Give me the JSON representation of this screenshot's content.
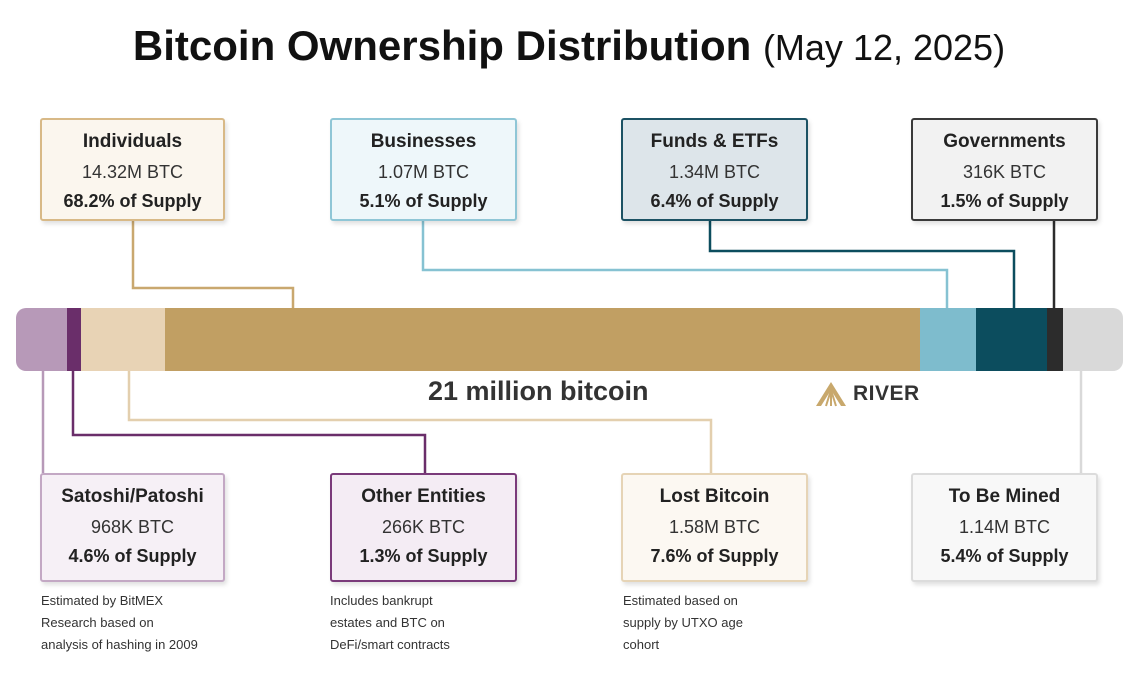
{
  "title": "Bitcoin Ownership Distribution",
  "title_date": "(May 12, 2025)",
  "chart_data": {
    "type": "bar",
    "orientation": "stacked-horizontal",
    "total_label": "21 million bitcoin",
    "unit": "% of Supply",
    "segments": [
      {
        "name": "Satoshi/Patoshi",
        "value": 4.6,
        "color": "#b799b8"
      },
      {
        "name": "Other Entities",
        "value": 1.3,
        "color": "#6a2e6a"
      },
      {
        "name": "Lost Bitcoin",
        "value": 7.6,
        "color": "#e8d3b5"
      },
      {
        "name": "Individuals",
        "value": 68.2,
        "color": "#c19f63"
      },
      {
        "name": "Businesses",
        "value": 5.1,
        "color": "#7ebccd"
      },
      {
        "name": "Funds & ETFs",
        "value": 6.4,
        "color": "#0c4d5e"
      },
      {
        "name": "Governments",
        "value": 1.5,
        "color": "#2c2c2c"
      },
      {
        "name": "To Be Mined",
        "value": 5.4,
        "color": "#d9d9d9"
      }
    ]
  },
  "cards": {
    "individuals": {
      "name": "Individuals",
      "btc": "14.32M BTC",
      "pct": "68.2% of Supply"
    },
    "businesses": {
      "name": "Businesses",
      "btc": "1.07M BTC",
      "pct": "5.1% of Supply"
    },
    "funds": {
      "name": "Funds & ETFs",
      "btc": "1.34M BTC",
      "pct": "6.4% of Supply"
    },
    "governments": {
      "name": "Governments",
      "btc": "316K BTC",
      "pct": "1.5% of Supply"
    },
    "satoshi": {
      "name": "Satoshi/Patoshi",
      "btc": "968K BTC",
      "pct": "4.6% of Supply"
    },
    "other": {
      "name": "Other Entities",
      "btc": "266K BTC",
      "pct": "1.3% of Supply"
    },
    "lost": {
      "name": "Lost Bitcoin",
      "btc": "1.58M BTC",
      "pct": "7.6% of Supply"
    },
    "mined": {
      "name": "To Be Mined",
      "btc": "1.14M BTC",
      "pct": "5.4% of Supply"
    }
  },
  "notes": {
    "satoshi": [
      "Estimated by BitMEX",
      "Research based on",
      "analysis of hashing in 2009"
    ],
    "other": [
      "Includes bankrupt",
      "estates and BTC on",
      "DeFi/smart contracts"
    ],
    "lost": [
      "Estimated based on",
      "supply by UTXO age",
      "cohort"
    ]
  },
  "logo": {
    "text": "RIVER",
    "icon": "river-mountain-icon"
  }
}
